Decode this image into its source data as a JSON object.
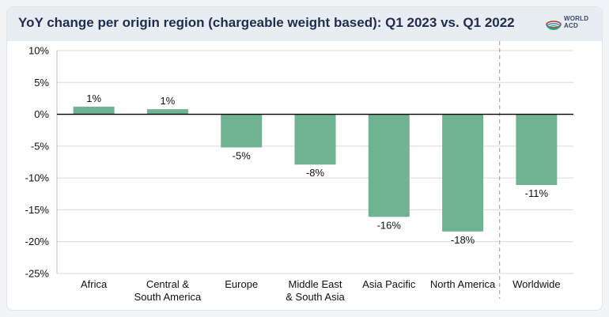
{
  "title": "YoY change per origin region (chargeable weight based): Q1 2023 vs. Q1 2022",
  "logo": {
    "line1": "WORLD",
    "line2": "ACD",
    "icon": "globe-swirl-icon"
  },
  "colors": {
    "bar": "#6fb393",
    "header_bg": "#e8edf4",
    "title": "#1f2d4f"
  },
  "chart_data": {
    "type": "bar",
    "title": "YoY change per origin region (chargeable weight based): Q1 2023 vs. Q1 2022",
    "categories": [
      [
        "Africa"
      ],
      [
        "Central &",
        "South America"
      ],
      [
        "Europe"
      ],
      [
        "Middle East",
        "& South Asia"
      ],
      [
        "Asia Pacific"
      ],
      [
        "North America"
      ],
      [
        "Worldwide"
      ]
    ],
    "values": [
      1.2,
      0.8,
      -5.2,
      -7.9,
      -16.1,
      -18.4,
      -11.1
    ],
    "labels": [
      "1%",
      "1%",
      "-5%",
      "-8%",
      "-16%",
      "-18%",
      "-11%"
    ],
    "yticks": [
      10,
      5,
      0,
      -5,
      -10,
      -15,
      -20,
      -25
    ],
    "ytick_labels": [
      "10%",
      "5%",
      "0%",
      "-5%",
      "-10%",
      "-15%",
      "-20%",
      "-25%"
    ],
    "ylim": [
      -25,
      10
    ],
    "grid": true,
    "separator_before_last": true
  }
}
